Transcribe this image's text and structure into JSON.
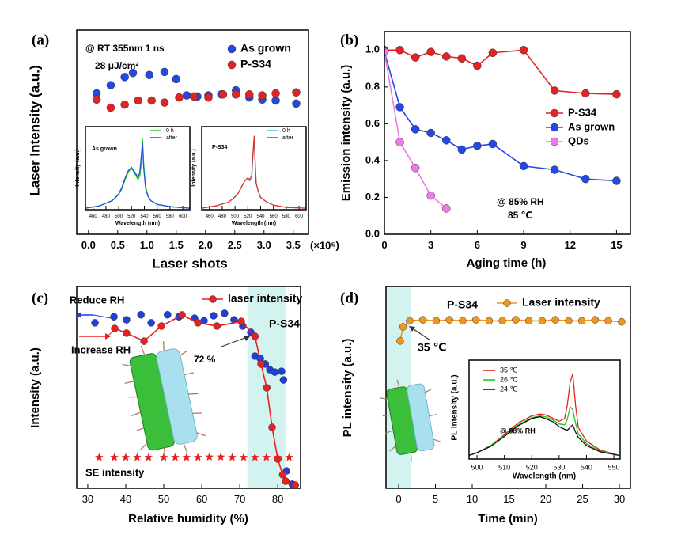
{
  "chart_data": [
    {
      "type": "scatter",
      "panel_label": "(a)",
      "x_label": "Laser shots",
      "y_label": "Laser Intensity (a.u.)",
      "annotations": [
        "@ RT 355nm  1 ns",
        "28 μJ/cm²",
        "(×10⁵)"
      ],
      "xlim": [
        -0.2,
        3.76
      ],
      "xticks": [
        {
          "value": 0,
          "label": "0.0"
        },
        0.5,
        {
          "value": 1,
          "label": "1.0"
        },
        1.5,
        {
          "value": 2,
          "label": "2.0"
        },
        2.5,
        {
          "value": 3,
          "label": "3.0"
        },
        3.5
      ],
      "ylim": [
        0,
        10
      ],
      "series": [
        {
          "name": "As grown",
          "color": "#2448e0",
          "line": false,
          "marker": "circle",
          "x": [
            0.14,
            0.38,
            0.62,
            0.76,
            1.04,
            1.3,
            1.5,
            1.68,
            1.86,
            2.05,
            2.27,
            2.52,
            2.75,
            2.97,
            3.2,
            3.55
          ],
          "values": [
            6.9,
            7.3,
            7.7,
            7.9,
            7.8,
            7.95,
            7.6,
            6.8,
            6.75,
            6.8,
            6.85,
            7.05,
            6.7,
            6.6,
            6.55,
            6.4
          ]
        },
        {
          "name": "P-S34",
          "color": "#e52222",
          "line": false,
          "marker": "circle",
          "x": [
            0.14,
            0.38,
            0.62,
            0.85,
            1.08,
            1.3,
            1.55,
            1.8,
            2.05,
            2.3,
            2.52,
            2.75,
            2.97,
            3.2,
            3.55
          ],
          "values": [
            6.6,
            6.2,
            6.35,
            6.55,
            6.55,
            6.45,
            6.7,
            6.75,
            6.7,
            6.85,
            6.85,
            6.85,
            6.8,
            6.9,
            6.95
          ]
        }
      ]
    },
    {
      "type": "line",
      "title": "As grown",
      "x_label": "Wavelength (nm)",
      "y_label": "Intensity (a.u.)",
      "xlim": [
        448,
        611
      ],
      "xticks": [
        460,
        480,
        500,
        520,
        540,
        560,
        580,
        600
      ],
      "ylim": [
        0,
        1.1
      ],
      "series": [
        {
          "name": "0 h",
          "color": "#22cc22",
          "line": true,
          "marker": "none",
          "x": [
            448,
            470,
            490,
            500,
            505,
            510,
            515,
            520,
            525,
            530,
            533,
            535,
            537,
            539,
            542,
            546,
            550,
            560,
            580,
            611
          ],
          "values": [
            0.02,
            0.05,
            0.12,
            0.2,
            0.28,
            0.4,
            0.5,
            0.55,
            0.48,
            0.4,
            0.45,
            0.6,
            0.95,
            0.6,
            0.3,
            0.18,
            0.12,
            0.07,
            0.04,
            0.02
          ]
        },
        {
          "name": "after",
          "color": "#2255dd",
          "line": true,
          "marker": "none",
          "x": [
            448,
            470,
            490,
            500,
            505,
            510,
            515,
            520,
            525,
            530,
            533,
            535,
            537,
            539,
            542,
            546,
            550,
            560,
            580,
            611
          ],
          "values": [
            0.02,
            0.05,
            0.12,
            0.21,
            0.3,
            0.42,
            0.52,
            0.56,
            0.5,
            0.43,
            0.5,
            0.7,
            0.88,
            0.55,
            0.28,
            0.17,
            0.12,
            0.07,
            0.04,
            0.02
          ]
        }
      ]
    },
    {
      "type": "line",
      "title": "P-S34",
      "x_label": "Wavelength (nm)",
      "y_label": "Intensity (a.u.)",
      "xlim": [
        448,
        611
      ],
      "xticks": [
        460,
        480,
        500,
        520,
        540,
        560,
        580,
        600
      ],
      "ylim": [
        0,
        1.1
      ],
      "series": [
        {
          "name": "0 h",
          "color": "#33d6e6",
          "line": true,
          "marker": "none",
          "x": [
            448,
            470,
            490,
            500,
            505,
            510,
            515,
            520,
            523,
            526,
            528,
            530,
            531,
            533,
            536,
            540,
            550,
            560,
            580,
            611
          ],
          "values": [
            0.02,
            0.05,
            0.1,
            0.17,
            0.22,
            0.3,
            0.38,
            0.42,
            0.38,
            0.42,
            0.7,
            0.95,
            0.7,
            0.35,
            0.25,
            0.16,
            0.1,
            0.06,
            0.03,
            0.02
          ]
        },
        {
          "name": "after",
          "color": "#e03030",
          "line": true,
          "marker": "none",
          "x": [
            448,
            470,
            490,
            500,
            505,
            510,
            515,
            520,
            523,
            526,
            528,
            530,
            531,
            533,
            536,
            540,
            550,
            560,
            580,
            611
          ],
          "values": [
            0.02,
            0.05,
            0.1,
            0.17,
            0.22,
            0.3,
            0.38,
            0.42,
            0.4,
            0.45,
            0.75,
            0.98,
            0.72,
            0.36,
            0.25,
            0.16,
            0.1,
            0.06,
            0.03,
            0.02
          ]
        }
      ]
    },
    {
      "type": "line",
      "panel_label": "(b)",
      "x_label": "Aging time (h)",
      "y_label": "Emission intensity (a.u.)",
      "annotations": [
        "@ 85% RH",
        "85 ℃"
      ],
      "xlim": [
        0,
        15.9
      ],
      "xticks": [
        0,
        3,
        6,
        9,
        12,
        15
      ],
      "ylim": [
        0,
        1.1
      ],
      "yticks": [
        {
          "value": 0,
          "label": "0.0"
        },
        0.2,
        0.4,
        0.6,
        0.8,
        {
          "value": 1,
          "label": "1.0"
        }
      ],
      "series": [
        {
          "name": "P-S34",
          "color": "#e52222",
          "line": true,
          "marker": "circle",
          "x": [
            0,
            1,
            2,
            3,
            4,
            5,
            6,
            7,
            9,
            11,
            13,
            15
          ],
          "values": [
            1.0,
            1.0,
            0.96,
            0.99,
            0.965,
            0.955,
            0.915,
            0.985,
            1.0,
            0.78,
            0.765,
            0.76
          ]
        },
        {
          "name": "As grown",
          "color": "#2448e0",
          "line": true,
          "marker": "circle",
          "x": [
            0,
            1,
            2,
            3,
            4,
            5,
            6,
            7,
            9,
            11,
            13,
            15
          ],
          "values": [
            0.99,
            0.69,
            0.57,
            0.55,
            0.51,
            0.46,
            0.48,
            0.49,
            0.37,
            0.35,
            0.3,
            0.29
          ]
        },
        {
          "name": "QDs",
          "color": "#f07ae8",
          "line": true,
          "marker": "circle",
          "x": [
            0,
            1,
            2,
            3,
            4
          ],
          "values": [
            0.99,
            0.5,
            0.36,
            0.21,
            0.14
          ]
        }
      ]
    },
    {
      "type": "line",
      "panel_label": "(c)",
      "x_label": "Relative humidity (%)",
      "y_label": "Intensity (a.u.)",
      "legend_label": "laser intensity",
      "annotations": [
        "72 %",
        "P-S34"
      ],
      "xlim": [
        27.1,
        86.0
      ],
      "xticks": [
        30,
        40,
        50,
        60,
        70,
        80
      ],
      "ylim": [
        0,
        10
      ],
      "highlight_x": [
        72,
        82
      ],
      "series": [
        {
          "name": "Reduce RH",
          "color": "#1f3fd8",
          "line": false,
          "marker": "circle",
          "x": [
            31.9,
            36.9,
            40.2,
            44.0,
            46.7,
            51.0,
            54.0,
            58.1,
            60.6,
            63.1,
            66.0,
            68.5,
            70.8,
            72.9,
            74.0,
            75.4,
            76.7,
            77.9,
            79.2,
            81.0,
            81.5,
            82.3,
            83.8
          ],
          "values": [
            8.2,
            8.5,
            8.35,
            8.6,
            8.2,
            8.6,
            8.5,
            8.43,
            8.3,
            8.55,
            8.67,
            8.35,
            8.04,
            7.73,
            6.55,
            6.43,
            6.16,
            5.88,
            5.76,
            5.8,
            5.37,
            0.86,
            0.2
          ]
        },
        {
          "name": "Increase RH",
          "color": "#e82020",
          "line": true,
          "marker": "circle",
          "x": [
            37.1,
            40.2,
            44.8,
            49.4,
            54.8,
            59.0,
            64.0,
            70.4,
            74.0,
            75.6,
            77.1,
            78.5,
            80.0,
            81.3,
            82.1,
            84.6
          ],
          "values": [
            7.92,
            7.69,
            7.29,
            8.04,
            8.59,
            8.2,
            8.04,
            8.27,
            7.53,
            6.16,
            4.98,
            3.02,
            1.45,
            0.67,
            0.35,
            0.16
          ]
        },
        {
          "name": "SE intensity",
          "color": "#e82020",
          "line": false,
          "marker": "star",
          "x": [
            33,
            37,
            40,
            43,
            46,
            50,
            53,
            56,
            59,
            62,
            65,
            68,
            71,
            74,
            77,
            80,
            83
          ],
          "values": [
            1.53,
            1.53,
            1.53,
            1.53,
            1.53,
            1.53,
            1.53,
            1.53,
            1.53,
            1.55,
            1.55,
            1.53,
            1.53,
            1.53,
            1.53,
            1.53,
            1.53
          ]
        }
      ]
    },
    {
      "type": "line",
      "panel_label": "(d)",
      "x_label": "Time (min)",
      "y_label": "PL intensity (a.u.)",
      "annotations": [
        "P-S34",
        "35 ℃"
      ],
      "xlim": [
        -1.72,
        31.5
      ],
      "xticks": [
        0,
        5,
        10,
        15,
        20,
        25,
        30
      ],
      "ylim": [
        0,
        10
      ],
      "highlight_x": [
        -1.72,
        1.7
      ],
      "series": [
        {
          "name": "Laser intensity",
          "color": "#f0961e",
          "line": true,
          "marker": "circle",
          "x": [
            0.2,
            0.6,
            1.5,
            3.3,
            5.1,
            6.9,
            8.7,
            10.5,
            12.3,
            14.1,
            15.9,
            17.7,
            19.5,
            21.3,
            23.1,
            24.9,
            26.7,
            28.5,
            30.3
          ],
          "values": [
            7.3,
            8.0,
            8.3,
            8.35,
            8.3,
            8.35,
            8.3,
            8.35,
            8.3,
            8.3,
            8.35,
            8.3,
            8.3,
            8.35,
            8.3,
            8.3,
            8.35,
            8.3,
            8.25
          ]
        }
      ]
    },
    {
      "type": "line",
      "x_label": "Wavelength (nm)",
      "y_label": "PL intensity (a.u.)",
      "annotations": [
        "@ 88% RH"
      ],
      "xlim": [
        497.1,
        552.3
      ],
      "xticks": [
        500,
        510,
        520,
        530,
        540,
        550
      ],
      "ylim": [
        0,
        1.1
      ],
      "series": [
        {
          "name": "35 ℃",
          "color": "#e82020",
          "line": true,
          "marker": "none",
          "x": [
            497,
            500,
            505,
            510,
            515,
            520,
            523,
            525,
            528,
            530,
            532,
            533,
            534,
            535,
            536,
            537,
            540,
            545,
            552
          ],
          "values": [
            0.04,
            0.07,
            0.15,
            0.27,
            0.4,
            0.48,
            0.5,
            0.49,
            0.45,
            0.42,
            0.45,
            0.6,
            0.85,
            0.95,
            0.6,
            0.35,
            0.2,
            0.1,
            0.04
          ]
        },
        {
          "name": "26 ℃",
          "color": "#22c422",
          "line": true,
          "marker": "none",
          "x": [
            497,
            500,
            505,
            510,
            515,
            520,
            523,
            525,
            528,
            530,
            532,
            533,
            534,
            535,
            536,
            537,
            540,
            545,
            552
          ],
          "values": [
            0.04,
            0.07,
            0.15,
            0.26,
            0.38,
            0.46,
            0.48,
            0.47,
            0.43,
            0.39,
            0.38,
            0.44,
            0.58,
            0.55,
            0.4,
            0.28,
            0.17,
            0.09,
            0.04
          ]
        },
        {
          "name": "24 ℃",
          "color": "#111111",
          "line": true,
          "marker": "none",
          "x": [
            497,
            500,
            505,
            510,
            515,
            520,
            523,
            525,
            528,
            530,
            532,
            533,
            534,
            535,
            536,
            537,
            540,
            545,
            552
          ],
          "values": [
            0.04,
            0.07,
            0.14,
            0.25,
            0.37,
            0.45,
            0.47,
            0.45,
            0.41,
            0.36,
            0.33,
            0.32,
            0.35,
            0.38,
            0.3,
            0.24,
            0.15,
            0.08,
            0.04
          ]
        }
      ]
    }
  ]
}
